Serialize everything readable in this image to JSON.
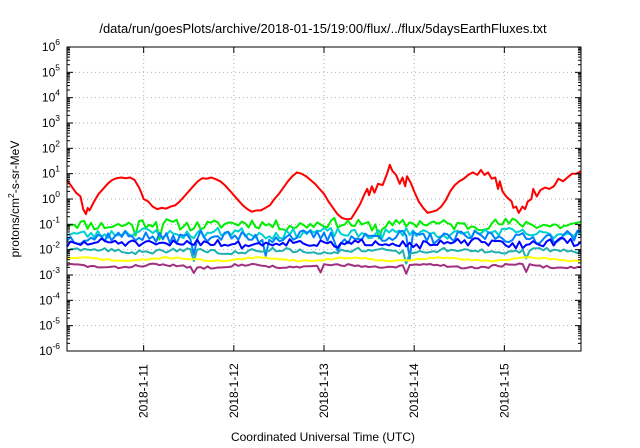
{
  "chart_data": {
    "type": "line",
    "title": "/data/run/goesPlots/archive/2018-01-15/19:00/flux/../flux/5daysEarthFluxes.txt",
    "xlabel": "Coordinated Universal Time (UTC)",
    "ylabel": "protons/cm²-s-sr-MeV",
    "ylabel_parts": {
      "pre": "protons/cm",
      "sup": "2",
      "post": "-s-sr-MeV"
    },
    "yscale": "log",
    "ylim_exponents": [
      -6,
      6
    ],
    "y_tick_labels": [
      {
        "base": "10",
        "exp": "-6"
      },
      {
        "base": "10",
        "exp": "-5"
      },
      {
        "base": "10",
        "exp": "-4"
      },
      {
        "base": "10",
        "exp": "-3"
      },
      {
        "base": "10",
        "exp": "-2"
      },
      {
        "base": "10",
        "exp": "-1"
      },
      {
        "base": "10",
        "exp": "0"
      },
      {
        "base": "10",
        "exp": "1"
      },
      {
        "base": "10",
        "exp": "2"
      },
      {
        "base": "10",
        "exp": "3"
      },
      {
        "base": "10",
        "exp": "4"
      },
      {
        "base": "10",
        "exp": "5"
      },
      {
        "base": "10",
        "exp": "6"
      }
    ],
    "xlim_days": [
      10.15,
      15.85
    ],
    "x_ticks": [
      {
        "day": 11,
        "label": "2018-1-11"
      },
      {
        "day": 12,
        "label": "2018-1-12"
      },
      {
        "day": 13,
        "label": "2018-1-13"
      },
      {
        "day": 14,
        "label": "2018-1-14"
      },
      {
        "day": 15,
        "label": "2018-1-15"
      }
    ],
    "grid": true,
    "series": [
      {
        "color": "#ff0000",
        "width": 2,
        "log_values": [
          [
            10.15,
            0.75
          ],
          [
            10.2,
            0.5
          ],
          [
            10.25,
            0.25
          ],
          [
            10.3,
            0.1
          ],
          [
            10.33,
            -0.4
          ],
          [
            10.36,
            -0.6
          ],
          [
            10.38,
            -0.35
          ],
          [
            10.4,
            -0.45
          ],
          [
            10.45,
            -0.1
          ],
          [
            10.5,
            0.2
          ],
          [
            10.55,
            0.4
          ],
          [
            10.6,
            0.6
          ],
          [
            10.65,
            0.75
          ],
          [
            10.7,
            0.82
          ],
          [
            10.75,
            0.85
          ],
          [
            10.8,
            0.82
          ],
          [
            10.85,
            0.85
          ],
          [
            10.9,
            0.75
          ],
          [
            10.95,
            0.45
          ],
          [
            10.98,
            0.2
          ],
          [
            11.0,
            0.0
          ],
          [
            11.05,
            -0.1
          ],
          [
            11.1,
            -0.3
          ],
          [
            11.15,
            -0.4
          ],
          [
            11.2,
            -0.35
          ],
          [
            11.25,
            -0.38
          ],
          [
            11.3,
            -0.3
          ],
          [
            11.35,
            -0.25
          ],
          [
            11.4,
            -0.1
          ],
          [
            11.45,
            0.1
          ],
          [
            11.5,
            0.3
          ],
          [
            11.55,
            0.5
          ],
          [
            11.6,
            0.7
          ],
          [
            11.65,
            0.82
          ],
          [
            11.7,
            0.8
          ],
          [
            11.75,
            0.85
          ],
          [
            11.8,
            0.78
          ],
          [
            11.85,
            0.7
          ],
          [
            11.9,
            0.55
          ],
          [
            11.95,
            0.35
          ],
          [
            12.0,
            0.15
          ],
          [
            12.05,
            -0.05
          ],
          [
            12.1,
            -0.25
          ],
          [
            12.15,
            -0.4
          ],
          [
            12.2,
            -0.5
          ],
          [
            12.25,
            -0.45
          ],
          [
            12.3,
            -0.45
          ],
          [
            12.35,
            -0.35
          ],
          [
            12.4,
            -0.25
          ],
          [
            12.45,
            0.0
          ],
          [
            12.5,
            0.2
          ],
          [
            12.55,
            0.45
          ],
          [
            12.6,
            0.7
          ],
          [
            12.65,
            0.9
          ],
          [
            12.7,
            1.05
          ],
          [
            12.75,
            1.0
          ],
          [
            12.8,
            0.9
          ],
          [
            12.85,
            0.75
          ],
          [
            12.9,
            0.6
          ],
          [
            12.95,
            0.4
          ],
          [
            13.0,
            0.2
          ],
          [
            13.05,
            -0.1
          ],
          [
            13.1,
            -0.35
          ],
          [
            13.15,
            -0.6
          ],
          [
            13.2,
            -0.75
          ],
          [
            13.25,
            -0.8
          ],
          [
            13.3,
            -0.78
          ],
          [
            13.35,
            -0.5
          ],
          [
            13.4,
            -0.2
          ],
          [
            13.45,
            0.2
          ],
          [
            13.48,
            0.4
          ],
          [
            13.5,
            0.15
          ],
          [
            13.53,
            0.5
          ],
          [
            13.56,
            0.25
          ],
          [
            13.6,
            0.6
          ],
          [
            13.65,
            0.55
          ],
          [
            13.7,
            1.0
          ],
          [
            13.73,
            1.35
          ],
          [
            13.76,
            1.1
          ],
          [
            13.8,
            0.95
          ],
          [
            13.84,
            0.6
          ],
          [
            13.87,
            0.85
          ],
          [
            13.9,
            0.5
          ],
          [
            13.92,
            0.9
          ],
          [
            13.96,
            0.65
          ],
          [
            14.0,
            0.3
          ],
          [
            14.05,
            -0.1
          ],
          [
            14.1,
            -0.35
          ],
          [
            14.15,
            -0.55
          ],
          [
            14.2,
            -0.5
          ],
          [
            14.25,
            -0.45
          ],
          [
            14.3,
            -0.3
          ],
          [
            14.35,
            -0.05
          ],
          [
            14.4,
            0.3
          ],
          [
            14.45,
            0.55
          ],
          [
            14.5,
            0.7
          ],
          [
            14.55,
            0.8
          ],
          [
            14.6,
            0.95
          ],
          [
            14.65,
            1.05
          ],
          [
            14.7,
            0.95
          ],
          [
            14.74,
            1.15
          ],
          [
            14.78,
            0.95
          ],
          [
            14.82,
            1.05
          ],
          [
            14.86,
            0.8
          ],
          [
            14.9,
            0.85
          ],
          [
            14.93,
            0.4
          ],
          [
            14.95,
            0.7
          ],
          [
            14.98,
            0.3
          ],
          [
            15.02,
            0.1
          ],
          [
            15.05,
            0.0
          ],
          [
            15.08,
            -0.1
          ],
          [
            15.1,
            -0.35
          ],
          [
            15.13,
            -0.3
          ],
          [
            15.16,
            -0.55
          ],
          [
            15.2,
            -0.3
          ],
          [
            15.23,
            -0.4
          ],
          [
            15.26,
            -0.1
          ],
          [
            15.3,
            0.0
          ],
          [
            15.32,
            0.4
          ],
          [
            15.36,
            0.1
          ],
          [
            15.4,
            0.35
          ],
          [
            15.45,
            0.45
          ],
          [
            15.5,
            0.4
          ],
          [
            15.55,
            0.5
          ],
          [
            15.6,
            0.8
          ],
          [
            15.65,
            0.7
          ],
          [
            15.7,
            0.85
          ],
          [
            15.75,
            1.0
          ],
          [
            15.8,
            1.0
          ],
          [
            15.85,
            1.1
          ]
        ]
      },
      {
        "color": "#00ee00",
        "width": 2,
        "log_mean": -1.0,
        "log_amp": 0.2,
        "seed": 11,
        "dips": [
          [
            10.92,
            -1.45
          ],
          [
            11.18,
            -1.6
          ],
          [
            13.6,
            -1.55
          ]
        ]
      },
      {
        "color": "#00d0d0",
        "width": 2,
        "log_mean": -1.35,
        "log_amp": 0.18,
        "seed": 23,
        "dips": []
      },
      {
        "color": "#0080ff",
        "width": 2,
        "log_mean": -1.5,
        "log_amp": 0.22,
        "seed": 37,
        "dips": [
          [
            11.55,
            -2.2
          ],
          [
            12.35,
            -2.25
          ],
          [
            13.15,
            -2.05
          ],
          [
            13.95,
            -2.35
          ]
        ]
      },
      {
        "color": "#0000ff",
        "width": 2,
        "log_mean": -1.75,
        "log_amp": 0.15,
        "seed": 51,
        "dips": []
      },
      {
        "color": "#20b0b0",
        "width": 2,
        "log_mean": -2.05,
        "log_amp": 0.08,
        "seed": 63,
        "dips": [
          [
            11.55,
            -2.45
          ],
          [
            13.92,
            -2.55
          ],
          [
            15.25,
            -2.35
          ]
        ]
      },
      {
        "color": "#ffff00",
        "width": 2,
        "log_mean": -2.38,
        "log_amp": 0.03,
        "seed": 71,
        "dips": []
      },
      {
        "color": "#a03080",
        "width": 2,
        "log_mean": -2.65,
        "log_amp": 0.05,
        "seed": 83,
        "dips": [
          [
            11.55,
            -2.92
          ],
          [
            12.97,
            -2.9
          ],
          [
            13.92,
            -2.95
          ],
          [
            15.23,
            -2.88
          ]
        ]
      }
    ]
  }
}
